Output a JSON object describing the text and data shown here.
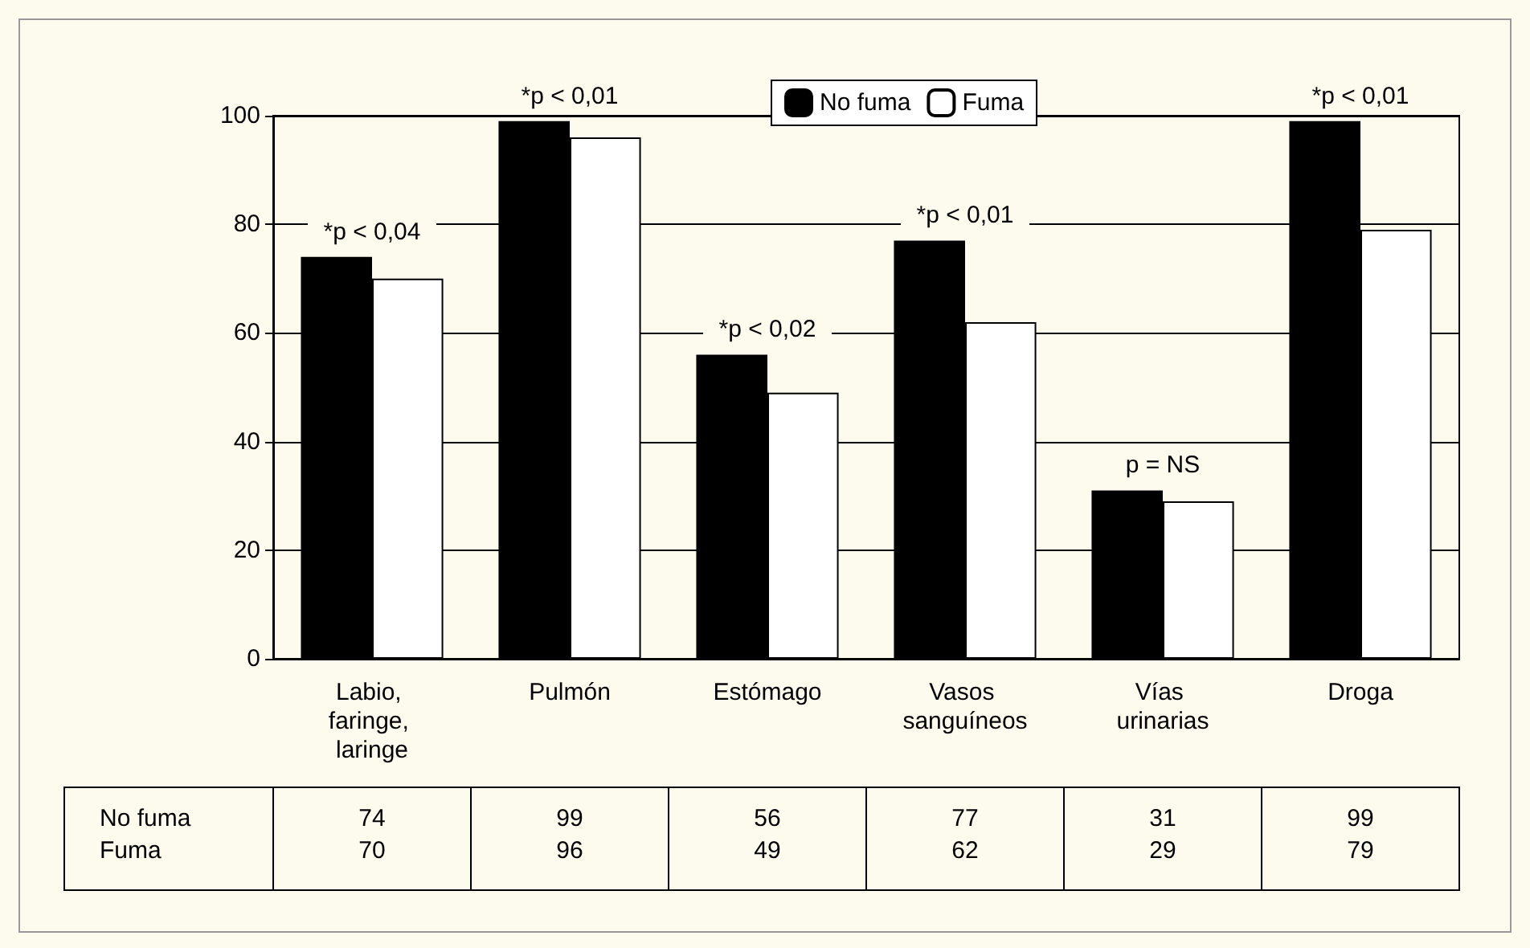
{
  "chart_data": {
    "type": "bar",
    "categories": [
      "Labio, faringe, laringe",
      "Pulmón",
      "Estómago",
      "Vasos sanguíneos",
      "Vías urinarias",
      "Droga"
    ],
    "series": [
      {
        "name": "No fuma",
        "color": "#000000",
        "values": [
          74,
          99,
          56,
          77,
          31,
          99
        ]
      },
      {
        "name": "Fuma",
        "color": "#ffffff",
        "values": [
          70,
          96,
          49,
          62,
          29,
          79
        ]
      }
    ],
    "ylim": [
      0,
      100
    ],
    "yticks": [
      0,
      20,
      40,
      60,
      80,
      100
    ],
    "grid": "y",
    "legend": "top",
    "data_labels": true,
    "annotations": [
      {
        "text": "*p < 0,04",
        "x": "Labio, faringe, laringe",
        "y": 74
      },
      {
        "text": "*p < 0,01",
        "x": "Pulmón",
        "y": 99
      },
      {
        "text": "*p < 0,02",
        "x": "Estómago",
        "y": 56
      },
      {
        "text": "*p < 0,01",
        "x": "Vasos sanguíneos",
        "y": 77
      },
      {
        "text": "p = NS",
        "x": "Vías urinarias",
        "y": 31
      },
      {
        "text": "*p < 0,01",
        "x": "Droga",
        "y": 99
      }
    ]
  }
}
